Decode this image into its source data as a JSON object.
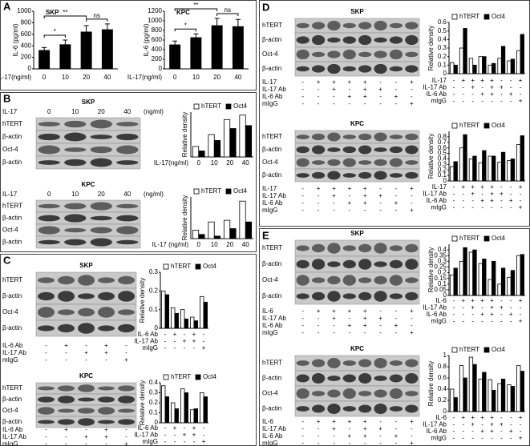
{
  "chart_data": [
    {
      "type": "bar",
      "panel": "A",
      "title": "SKP",
      "ylabel": "IL-6 (pg/ml)",
      "xlabel": "IL-17(ng/ml)",
      "categories": [
        "0",
        "10",
        "20",
        "40"
      ],
      "series": [
        {
          "color": "#000000",
          "values": [
            320,
            420,
            640,
            680
          ],
          "errors": [
            50,
            80,
            110,
            100
          ]
        }
      ],
      "ylim": [
        0,
        1000
      ],
      "yticks": [
        0,
        200,
        400,
        600,
        800,
        1000
      ],
      "significance": [
        {
          "from": 0,
          "to": 1,
          "label": "*"
        },
        {
          "from": 0,
          "to": 2,
          "label": "**"
        },
        {
          "from": 2,
          "to": 3,
          "label": "ns"
        }
      ]
    },
    {
      "type": "bar",
      "title": "KPC",
      "ylabel": "IL-6 (pg/ml)",
      "xlabel": "IL-17(ng/ml)",
      "categories": [
        "0",
        "10",
        "20",
        "40"
      ],
      "series": [
        {
          "color": "#000000",
          "values": [
            500,
            650,
            900,
            880
          ],
          "errors": [
            80,
            80,
            150,
            150
          ]
        }
      ],
      "ylim": [
        0,
        1200
      ],
      "yticks": [
        0,
        200,
        400,
        600,
        800,
        1000,
        1200
      ],
      "significance": [
        {
          "from": 0,
          "to": 1,
          "label": "*"
        },
        {
          "from": 0,
          "to": 2,
          "label": "**"
        },
        {
          "from": 2,
          "to": 3,
          "label": "ns"
        }
      ]
    },
    {
      "type": "bar",
      "panel": "B",
      "title": "SKP",
      "ylabel": "Relative density",
      "xlabel": "IL-17(ng/ml)",
      "categories": [
        "0",
        "10",
        "20",
        "40"
      ],
      "blot_header": {
        "name": "IL-17",
        "unit": "(ng/ml)"
      },
      "blot_labels": [
        "hTERT",
        "β-actin",
        "Oct-4",
        "β-actin"
      ],
      "series": [
        {
          "name": "hTERT",
          "color": "#ffffff",
          "values": [
            0.07,
            0.15,
            0.25,
            0.28
          ]
        },
        {
          "name": "Oct4",
          "color": "#000000",
          "values": [
            0.04,
            0.11,
            0.19,
            0.21
          ]
        }
      ],
      "ylim": [
        0,
        0.3
      ]
    },
    {
      "type": "bar",
      "title": "KPC",
      "ylabel": "Relative density",
      "xlabel": "IL-17 (ng/ml)",
      "categories": [
        "0",
        "10",
        "20",
        "40"
      ],
      "blot_header": {
        "name": "IL-17",
        "unit": "(ng/ml)"
      },
      "blot_labels": [
        "hTERT",
        "β-actin",
        "Oct-4",
        "β-actin"
      ],
      "series": [
        {
          "name": "hTERT",
          "color": "#ffffff",
          "values": [
            0.1,
            0.2,
            0.22,
            0.45
          ]
        },
        {
          "name": "Oct4",
          "color": "#000000",
          "values": [
            0.05,
            0.03,
            0.12,
            0.2
          ]
        }
      ],
      "ylim": [
        0,
        0.5
      ]
    },
    {
      "type": "bar",
      "panel": "C",
      "title": "SKP",
      "ylabel": "Relative density",
      "blot_labels": [
        "hTERT",
        "β-actin",
        "Oct-4",
        "β-actin"
      ],
      "treatments": [
        {
          "name": "IL-6 Ab",
          "values": [
            "-",
            "+",
            "-",
            "+",
            "-"
          ]
        },
        {
          "name": "IL-17 Ab",
          "values": [
            "-",
            "-",
            "+",
            "+",
            "-"
          ]
        },
        {
          "name": "mIgG",
          "values": [
            "-",
            "-",
            "-",
            "-",
            "+"
          ]
        }
      ],
      "series": [
        {
          "name": "hTERT",
          "color": "#ffffff",
          "values": [
            0.2,
            0.11,
            0.1,
            0.06,
            0.17
          ]
        },
        {
          "name": "Oct4",
          "color": "#000000",
          "values": [
            0.18,
            0.08,
            0.05,
            0.04,
            0.14
          ]
        }
      ],
      "ylim": [
        0,
        0.3
      ],
      "yticks": [
        0,
        0.1,
        0.2,
        0.3
      ]
    },
    {
      "type": "bar",
      "title": "KPC",
      "ylabel": "Relative density",
      "blot_labels": [
        "hTERT",
        "β-actin",
        "Oct-4",
        "β-actin"
      ],
      "treatments": [
        {
          "name": "IL-6 Ab",
          "values": [
            "-",
            "+",
            "-",
            "+",
            "-"
          ]
        },
        {
          "name": "IL-17 Ab",
          "values": [
            "-",
            "-",
            "+",
            "+",
            "-"
          ]
        },
        {
          "name": "mIgG",
          "values": [
            "-",
            "-",
            "-",
            "-",
            "+"
          ]
        }
      ],
      "series": [
        {
          "name": "hTERT",
          "color": "#ffffff",
          "values": [
            0.37,
            0.2,
            0.34,
            0.13,
            0.3
          ]
        },
        {
          "name": "Oct4",
          "color": "#000000",
          "values": [
            0.26,
            0.14,
            0.3,
            0.14,
            0.26
          ]
        }
      ],
      "ylim": [
        0,
        0.4
      ],
      "yticks": [
        0,
        0.1,
        0.2,
        0.3,
        0.4
      ]
    },
    {
      "type": "bar",
      "panel": "D",
      "title": "SKP",
      "ylabel": "Relative density",
      "blot_labels": [
        "hTERT",
        "β-actin",
        "Oct-4",
        "β-actin"
      ],
      "treatments": [
        {
          "name": "IL-17",
          "values": [
            "-",
            "+",
            "+",
            "+",
            "+",
            "-",
            "-",
            "+"
          ]
        },
        {
          "name": "IL-17 Ab",
          "values": [
            "-",
            "-",
            "+",
            "-",
            "+",
            "+",
            "-",
            "-"
          ]
        },
        {
          "name": "IL-6 Ab",
          "values": [
            "-",
            "-",
            "-",
            "+",
            "+",
            "-",
            "+",
            "-"
          ]
        },
        {
          "name": "mIgG",
          "values": [
            "-",
            "-",
            "-",
            "-",
            "-",
            "-",
            "-",
            "+"
          ]
        }
      ],
      "series": [
        {
          "name": "hTERT",
          "color": "#ffffff",
          "values": [
            0.13,
            0.3,
            0.18,
            0.2,
            0.1,
            0.18,
            0.15,
            0.27
          ]
        },
        {
          "name": "Oct4",
          "color": "#000000",
          "values": [
            0.1,
            0.53,
            0.1,
            0.2,
            0.12,
            0.32,
            0.17,
            0.46
          ]
        }
      ],
      "ylim": [
        0,
        0.6
      ],
      "yticks": [
        0,
        0.1,
        0.2,
        0.3,
        0.4,
        0.5,
        0.6
      ]
    },
    {
      "type": "bar",
      "title": "KPC",
      "ylabel": "Relative density",
      "blot_labels": [
        "hTERT",
        "β-actin",
        "Oct-4",
        "β-actin"
      ],
      "treatments": [
        {
          "name": "IL-17",
          "values": [
            "-",
            "+",
            "+",
            "+",
            "+",
            "-",
            "-",
            "+"
          ]
        },
        {
          "name": "IL-17 Ab",
          "values": [
            "-",
            "-",
            "+",
            "-",
            "+",
            "+",
            "-",
            "-"
          ]
        },
        {
          "name": "IL-6 Ab",
          "values": [
            "-",
            "-",
            "-",
            "+",
            "+",
            "-",
            "+",
            "-"
          ]
        },
        {
          "name": "mIgG",
          "values": [
            "-",
            "-",
            "-",
            "-",
            "-",
            "-",
            "-",
            "+"
          ]
        }
      ],
      "series": [
        {
          "name": "hTERT",
          "color": "#ffffff",
          "values": [
            0.26,
            0.6,
            0.4,
            0.33,
            0.45,
            0.34,
            0.37,
            0.66
          ]
        },
        {
          "name": "Oct4",
          "color": "#000000",
          "values": [
            0.35,
            0.84,
            0.45,
            0.55,
            0.45,
            0.52,
            0.4,
            0.82
          ]
        }
      ],
      "ylim": [
        0,
        0.9
      ],
      "yticks": [
        0,
        0.1,
        0.2,
        0.3,
        0.4,
        0.5,
        0.6,
        0.7,
        0.8
      ]
    },
    {
      "type": "bar",
      "panel": "E",
      "title": "SKP",
      "ylabel": "Relative density",
      "blot_labels": [
        "hTERT",
        "β-actin",
        "Oct-4",
        "β-actin"
      ],
      "treatments": [
        {
          "name": "IL-6",
          "values": [
            "-",
            "+",
            "+",
            "+",
            "+",
            "-",
            "-",
            "+"
          ]
        },
        {
          "name": "IL-17 Ab",
          "values": [
            "-",
            "-",
            "+",
            "-",
            "+",
            "+",
            "-",
            "-"
          ]
        },
        {
          "name": "IL-6 Ab",
          "values": [
            "-",
            "-",
            "-",
            "+",
            "+",
            "-",
            "+",
            "-"
          ]
        },
        {
          "name": "mIgG",
          "values": [
            "-",
            "-",
            "-",
            "-",
            "-",
            "-",
            "-",
            "+"
          ]
        }
      ],
      "series": [
        {
          "name": "hTERT",
          "color": "#ffffff",
          "values": [
            0.18,
            0.3,
            0.38,
            0.28,
            0.14,
            0.1,
            0.16,
            0.35
          ]
        },
        {
          "name": "Oct4",
          "color": "#000000",
          "values": [
            0.24,
            0.42,
            0.4,
            0.32,
            0.3,
            0.24,
            0.22,
            0.36
          ]
        }
      ],
      "ylim": [
        0,
        0.45
      ],
      "yticks": [
        0,
        0.05,
        0.1,
        0.15,
        0.2,
        0.25,
        0.3,
        0.35,
        0.4
      ]
    },
    {
      "type": "bar",
      "title": "KPC",
      "ylabel": "Relative density",
      "blot_labels": [
        "hTERT",
        "β-actin",
        "Oct-4",
        "β-actin"
      ],
      "treatments": [
        {
          "name": "IL-6",
          "values": [
            "-",
            "+",
            "+",
            "+",
            "+",
            "-",
            "-",
            "+"
          ]
        },
        {
          "name": "IL-17 Ab",
          "values": [
            "-",
            "-",
            "+",
            "-",
            "+",
            "+",
            "-",
            "-"
          ]
        },
        {
          "name": "IL-6 Ab",
          "values": [
            "-",
            "-",
            "-",
            "+",
            "+",
            "-",
            "+",
            "-"
          ]
        },
        {
          "name": "mIgG",
          "values": [
            "-",
            "-",
            "-",
            "-",
            "-",
            "-",
            "-",
            "+"
          ]
        }
      ],
      "series": [
        {
          "name": "hTERT",
          "color": "#ffffff",
          "values": [
            0.4,
            0.82,
            0.97,
            0.58,
            0.57,
            0.5,
            0.48,
            0.82
          ]
        },
        {
          "name": "Oct4",
          "color": "#000000",
          "values": [
            0.25,
            0.6,
            0.84,
            0.7,
            0.38,
            0.58,
            0.45,
            0.72
          ]
        }
      ],
      "ylim": [
        0,
        1
      ],
      "yticks": [
        0,
        0.2,
        0.4,
        0.6,
        0.8,
        1
      ]
    }
  ]
}
